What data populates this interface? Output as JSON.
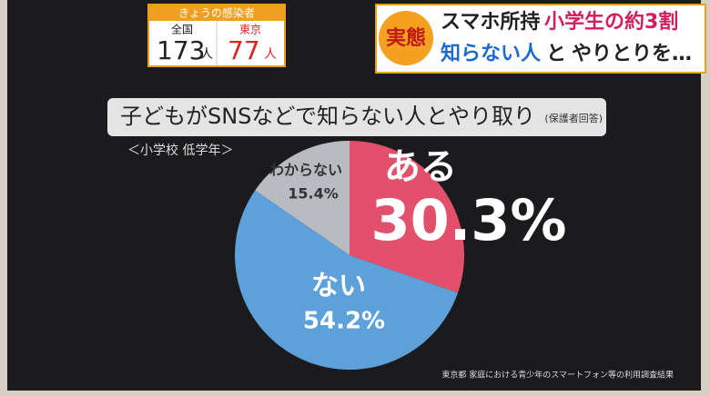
{
  "infection_box": {
    "title": "きょうの感染者",
    "national_label": "全国",
    "national_count": 173,
    "unit": "人",
    "tokyo_label": "東京",
    "tokyo_count": 77
  },
  "headline": {
    "badge": "実態",
    "line1a": "スマホ所持",
    "line1b": "小学生の約3割",
    "line2a": "知らない人",
    "line2b": "と",
    "line2c": "やりとりを…"
  },
  "chart_data": {
    "type": "pie",
    "title": "子どもがSNSなどで知らない人とやり取り",
    "title_note": "(保護者回答)",
    "subtitle": "＜小学校 低学年＞",
    "categories": [
      "ある",
      "ない",
      "わからない"
    ],
    "values": [
      30.3,
      54.2,
      15.4
    ],
    "value_labels": [
      "30.3%",
      "54.2%",
      "15.4%"
    ],
    "colors": [
      "#e2506b",
      "#5da0da",
      "#b8bbbf"
    ]
  },
  "source": "東京都 家庭における青少年のスマートフォン等の利用調査結果"
}
